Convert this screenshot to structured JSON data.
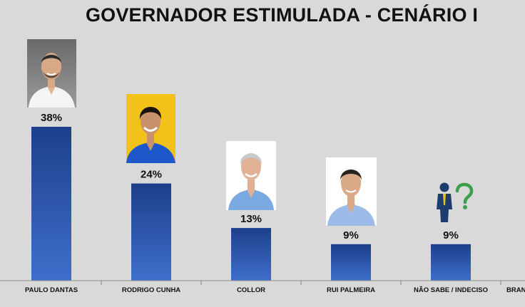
{
  "chart_data": {
    "type": "bar",
    "title": "GOVERNADOR ESTIMULADA - CENÁRIO I",
    "categories": [
      "PAULO DANTAS",
      "RODRIGO CUNHA",
      "COLLOR",
      "RUI PALMEIRA",
      "NÃO SABE / INDECISO",
      "BRANC"
    ],
    "values": [
      38,
      24,
      13,
      9,
      9,
      null
    ],
    "value_labels": [
      "38%",
      "24%",
      "13%",
      "9%",
      "9%",
      ""
    ],
    "unit": "%",
    "ylim": [
      0,
      40
    ],
    "grid": false,
    "legend": "none"
  },
  "colors": {
    "background": "#d9d9d9",
    "bar_top": "#1c3f8a",
    "bar_bottom": "#3f6fcc",
    "axis": "#888888"
  },
  "icons": [
    "photo-paulo-dantas",
    "photo-rodrigo-cunha",
    "photo-collor",
    "photo-rui-palmeira",
    "undecided-person-question-icon"
  ]
}
